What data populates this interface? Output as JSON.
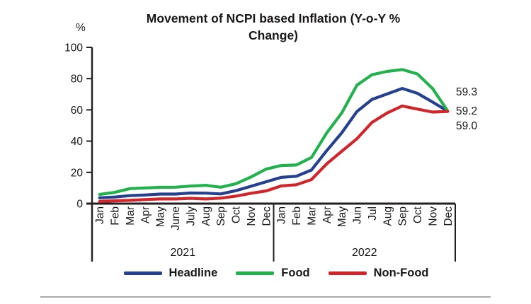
{
  "end_labels": [
    "59.3",
    "59.2",
    "59.0"
  ],
  "chart_data": {
    "type": "line",
    "title": "Movement of NCPI based Inflation (Y-o-Y % Change)",
    "xlabel": "",
    "ylabel": "%",
    "ylim": [
      0,
      100
    ],
    "y_ticks": [
      0,
      20,
      40,
      60,
      80,
      100
    ],
    "grid": false,
    "legend_position": "bottom",
    "categories": [
      "Jan",
      "Feb",
      "Mar",
      "Apr",
      "May",
      "June",
      "July",
      "Aug",
      "Sep",
      "Oct",
      "Nov",
      "Dec",
      "Jan",
      "Feb",
      "Mar",
      "Apr",
      "May",
      "Jun",
      "Jul",
      "Aug",
      "Sep",
      "Oct",
      "Nov",
      "Dec"
    ],
    "category_groups": [
      {
        "label": "2021",
        "span": 12
      },
      {
        "label": "2022",
        "span": 12
      }
    ],
    "series": [
      {
        "name": "Headline",
        "color": "#25408f",
        "end_value": 59.2,
        "values": [
          3.7,
          4.2,
          5.1,
          5.5,
          6.1,
          6.1,
          6.8,
          6.7,
          6.2,
          8.3,
          11.1,
          14.0,
          16.8,
          17.5,
          21.5,
          33.8,
          45.3,
          58.9,
          66.7,
          70.2,
          73.7,
          70.6,
          65.0,
          59.2
        ]
      },
      {
        "name": "Food",
        "color": "#22b14c",
        "end_value": 59.3,
        "values": [
          5.9,
          7.2,
          9.6,
          10.0,
          10.4,
          10.5,
          11.2,
          11.7,
          10.5,
          12.7,
          17.0,
          22.1,
          24.4,
          24.7,
          29.5,
          45.1,
          58.0,
          75.8,
          82.5,
          84.6,
          85.8,
          83.0,
          73.7,
          59.3
        ]
      },
      {
        "name": "Non-Food",
        "color": "#d0252b",
        "end_value": 59.0,
        "values": [
          1.4,
          1.8,
          2.1,
          2.6,
          3.0,
          3.0,
          3.4,
          3.0,
          3.5,
          4.8,
          6.6,
          8.1,
          11.3,
          12.1,
          15.4,
          25.4,
          33.5,
          41.5,
          52.0,
          58.0,
          62.5,
          60.5,
          58.6,
          59.0
        ]
      }
    ],
    "axis_color": "#231f20",
    "text_color": "#1a1718"
  }
}
